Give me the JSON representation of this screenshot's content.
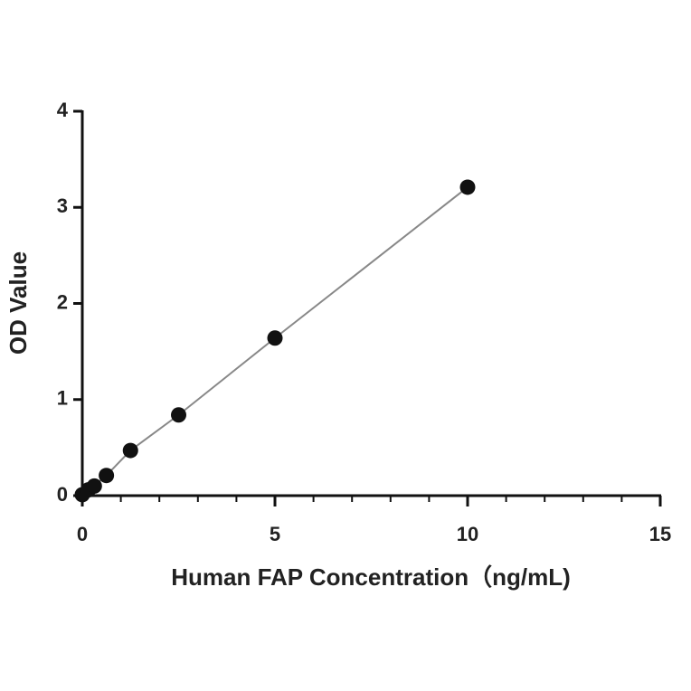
{
  "chart_data": {
    "type": "scatter",
    "xlabel": "Human FAP Concentration（ng/mL)",
    "ylabel": "OD Value",
    "series": [
      {
        "color": "#111111",
        "line_color": "#888888",
        "x": [
          0,
          0.156,
          0.3125,
          0.625,
          1.25,
          2.5,
          5,
          10
        ],
        "values": [
          0.01,
          0.06,
          0.1,
          0.21,
          0.47,
          0.84,
          1.64,
          3.21
        ]
      }
    ],
    "xlim": [
      0,
      15
    ],
    "xticks": [
      0,
      5,
      10,
      15
    ],
    "xticks_minor": [
      1,
      2,
      3,
      4,
      6,
      7,
      8,
      9,
      11,
      12,
      13,
      14
    ],
    "ylim": [
      0,
      4
    ],
    "yticks": [
      0,
      1,
      2,
      3,
      4
    ]
  }
}
